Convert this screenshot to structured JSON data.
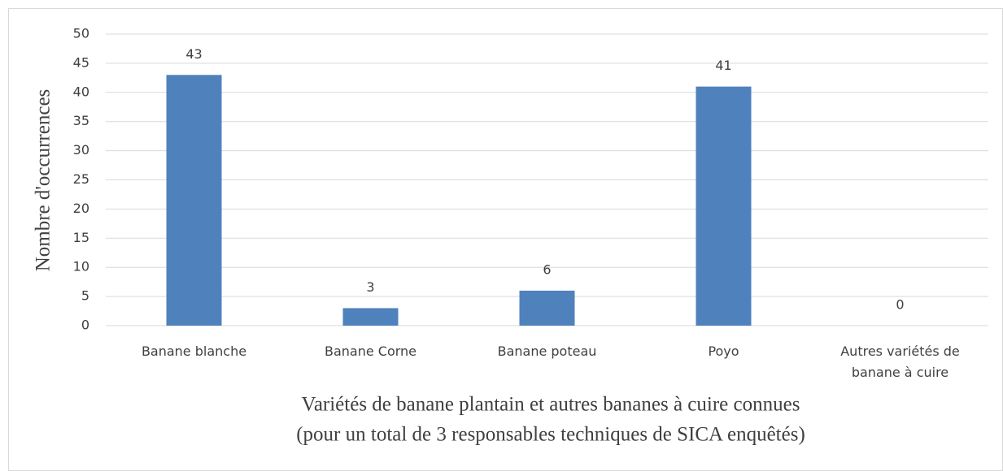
{
  "chart_data": {
    "type": "bar",
    "ylabel": "Nombre d'occurrences",
    "xlabel": [
      "Variétés de banane plantain et autres bananes à cuire connues",
      "(pour un total de 3 responsables techniques de SICA enquêtés)"
    ],
    "categories": [
      "Banane blanche",
      "Banane Corne",
      "Banane poteau",
      "Poyo",
      "Autres variétés de banane à cuire"
    ],
    "values": [
      43,
      3,
      6,
      41,
      0
    ],
    "color": "#4f81bd",
    "ylim": [
      0,
      50
    ],
    "yticks": [
      0,
      5,
      10,
      15,
      20,
      25,
      30,
      35,
      40,
      45,
      50
    ],
    "grid": true
  }
}
